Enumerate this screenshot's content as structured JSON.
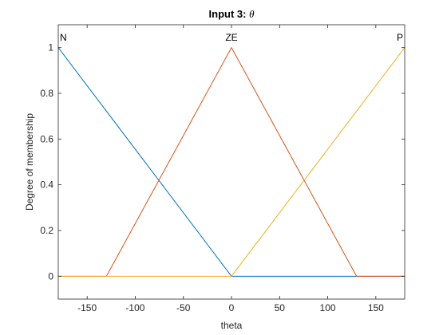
{
  "chart_data": {
    "type": "line",
    "title": "Input 3: ",
    "title_symbol": "θ",
    "xlabel": "theta",
    "ylabel": "Degree of membership",
    "xlim": [
      -180,
      180
    ],
    "ylim": [
      -0.1,
      1.1
    ],
    "xticks": [
      -150,
      -100,
      -50,
      0,
      50,
      100,
      150
    ],
    "yticks": [
      0,
      0.2,
      0.4,
      0.6,
      0.8,
      1
    ],
    "grid": false,
    "series": [
      {
        "name": "N",
        "color": "#0072BD",
        "x": [
          -180,
          0,
          180
        ],
        "y": [
          1,
          0,
          0
        ]
      },
      {
        "name": "ZE",
        "color": "#D95319",
        "x": [
          -180,
          -130,
          0,
          130,
          180
        ],
        "y": [
          0,
          0,
          1,
          0,
          0
        ]
      },
      {
        "name": "P",
        "color": "#EDB120",
        "x": [
          -180,
          0,
          180
        ],
        "y": [
          0,
          0,
          1
        ]
      }
    ],
    "membership_labels": [
      {
        "text": "N",
        "at_x": -180
      },
      {
        "text": "ZE",
        "at_x": 0
      },
      {
        "text": "P",
        "at_x": 180
      }
    ]
  }
}
